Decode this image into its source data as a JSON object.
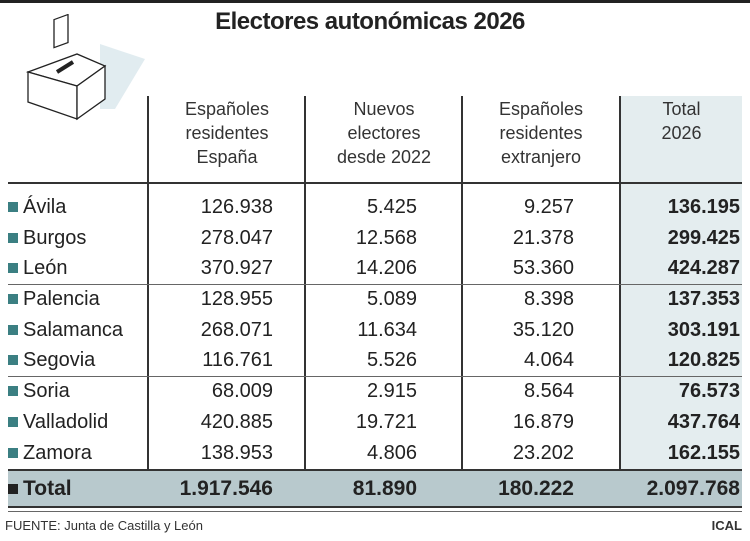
{
  "title": "Electores autonómicas 2026",
  "colors": {
    "accent_square": "#3b7f82",
    "total_column_bg": "#e4edef",
    "total_row_bg": "#b8c9cd"
  },
  "icon": "ballot-box-icon",
  "chart_data": {
    "type": "table",
    "title": "Electores autonómicas 2026",
    "columns": [
      "Españoles residentes España",
      "Nuevos electores desde 2022",
      "Españoles residentes extranjero",
      "Total 2026"
    ],
    "rows": [
      {
        "name": "Ávila",
        "values": [
          "126.938",
          "5.425",
          "9.257",
          "136.195"
        ]
      },
      {
        "name": "Burgos",
        "values": [
          "278.047",
          "12.568",
          "21.378",
          "299.425"
        ]
      },
      {
        "name": "León",
        "values": [
          "370.927",
          "14.206",
          "53.360",
          "424.287"
        ]
      },
      {
        "name": "Palencia",
        "values": [
          "128.955",
          "5.089",
          "8.398",
          "137.353"
        ]
      },
      {
        "name": "Salamanca",
        "values": [
          "268.071",
          "11.634",
          "35.120",
          "303.191"
        ]
      },
      {
        "name": "Segovia",
        "values": [
          "116.761",
          "5.526",
          "4.064",
          "120.825"
        ]
      },
      {
        "name": "Soria",
        "values": [
          "68.009",
          "2.915",
          "8.564",
          "76.573"
        ]
      },
      {
        "name": "Valladolid",
        "values": [
          "420.885",
          "19.721",
          "16.879",
          "437.764"
        ]
      },
      {
        "name": "Zamora",
        "values": [
          "138.953",
          "4.806",
          "23.202",
          "162.155"
        ]
      }
    ],
    "total": {
      "name": "Total",
      "values": [
        "1.917.546",
        "81.890",
        "180.222",
        "2.097.768"
      ]
    }
  },
  "headers": [
    [
      "Españoles",
      "residentes",
      "España"
    ],
    [
      "Nuevos",
      "electores",
      "desde 2022"
    ],
    [
      "Españoles",
      "residentes",
      "extranjero"
    ],
    [
      "Total",
      "2026"
    ]
  ],
  "footer": {
    "source": "FUENTE: Junta de Castilla y León",
    "brand": "ICAL"
  }
}
